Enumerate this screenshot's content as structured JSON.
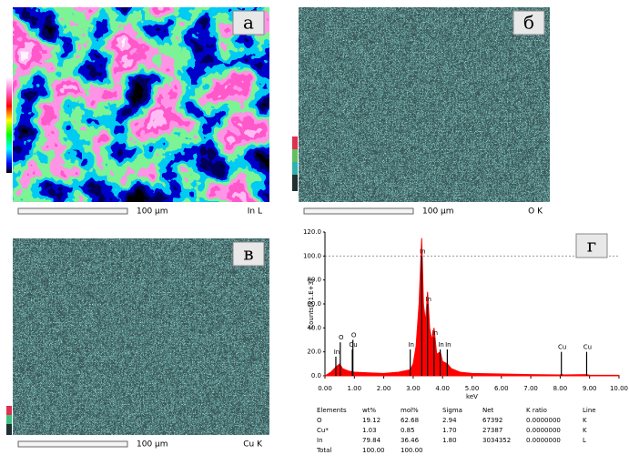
{
  "panels": [
    {
      "letter": "a",
      "scale": "100 µm",
      "element": "In L"
    },
    {
      "letter": "б",
      "scale": "100 µm",
      "element": "O K"
    },
    {
      "letter": "в",
      "scale": "100 µm",
      "element": "Cu K"
    }
  ],
  "spectrum": {
    "letter": "г",
    "y_label": "Counts[x1.E+3]",
    "x_label": "keV",
    "xlim": [
      0,
      10
    ],
    "ylim": [
      0,
      120
    ],
    "xticks": [
      {
        "value": 0,
        "label": "0.00"
      },
      {
        "value": 1,
        "label": "1.00"
      },
      {
        "value": 2,
        "label": "2.00"
      },
      {
        "value": 3,
        "label": "3.00"
      },
      {
        "value": 4,
        "label": "4.00"
      },
      {
        "value": 5,
        "label": "5.00"
      },
      {
        "value": 6,
        "label": "6.00"
      },
      {
        "value": 7,
        "label": "7.00"
      },
      {
        "value": 8,
        "label": "8.00"
      },
      {
        "value": 9,
        "label": "9.00"
      },
      {
        "value": 10,
        "label": "10.00"
      }
    ],
    "yticks": [
      {
        "value": 0,
        "label": "0.0"
      },
      {
        "value": 20,
        "label": "20.0"
      },
      {
        "value": 40,
        "label": "40.0"
      },
      {
        "value": 60,
        "label": "60.0"
      },
      {
        "value": 80,
        "label": "80.0"
      },
      {
        "value": 100,
        "label": "100.0"
      },
      {
        "value": 120,
        "label": "120.0"
      }
    ],
    "color": "#ff0000",
    "x": [
      0,
      0.2,
      0.4,
      0.5,
      0.6,
      0.8,
      1.0,
      1.5,
      2.0,
      2.5,
      2.9,
      3.0,
      3.1,
      3.2,
      3.29,
      3.35,
      3.42,
      3.49,
      3.56,
      3.63,
      3.71,
      3.8,
      3.92,
      4.0,
      4.16,
      4.3,
      4.6,
      5,
      6,
      7,
      8,
      8.04,
      8.1,
      8.9,
      9,
      10
    ],
    "values": [
      0,
      3,
      8,
      10,
      6,
      4,
      3,
      2.5,
      2,
      3,
      5,
      10,
      25,
      60,
      115,
      60,
      45,
      70,
      40,
      30,
      40,
      18,
      20,
      12,
      10,
      6,
      3,
      2,
      1.5,
      1,
      0.8,
      1.5,
      0.8,
      1,
      0.6,
      0.5
    ],
    "markers": [
      {
        "label": "In",
        "x": 0.37,
        "y": 16
      },
      {
        "label": "O",
        "x": 0.52,
        "y": 28
      },
      {
        "label": "Cu",
        "x": 0.93,
        "y": 22
      },
      {
        "label": "O",
        "x": 0.95,
        "y": 30
      },
      {
        "label": "In",
        "x": 2.9,
        "y": 22
      },
      {
        "label": "In",
        "x": 3.29,
        "y": 100
      },
      {
        "label": "In",
        "x": 3.49,
        "y": 60
      },
      {
        "label": "In",
        "x": 3.71,
        "y": 32
      },
      {
        "label": "In",
        "x": 3.92,
        "y": 22
      },
      {
        "label": "In",
        "x": 4.16,
        "y": 22
      },
      {
        "label": "Cu",
        "x": 8.04,
        "y": 20
      },
      {
        "label": "Cu",
        "x": 8.9,
        "y": 20
      }
    ]
  },
  "table": {
    "header": [
      "Elements",
      "wt%",
      "mol%",
      "Sigma",
      "Net",
      "K ratio",
      "Line"
    ],
    "rows": [
      [
        "O",
        "19.12",
        "62.68",
        "2.94",
        "67392",
        "0.0000000",
        "K"
      ],
      [
        "Cu*",
        "1.03",
        "0.85",
        "1.70",
        "27387",
        "0.0000000",
        "K"
      ],
      [
        "In",
        "79.84",
        "36.46",
        "1.80",
        "3034352",
        "0.0000000",
        "L"
      ],
      [
        "Total",
        "100.00",
        "100.00",
        "",
        "",
        "",
        ""
      ]
    ]
  }
}
